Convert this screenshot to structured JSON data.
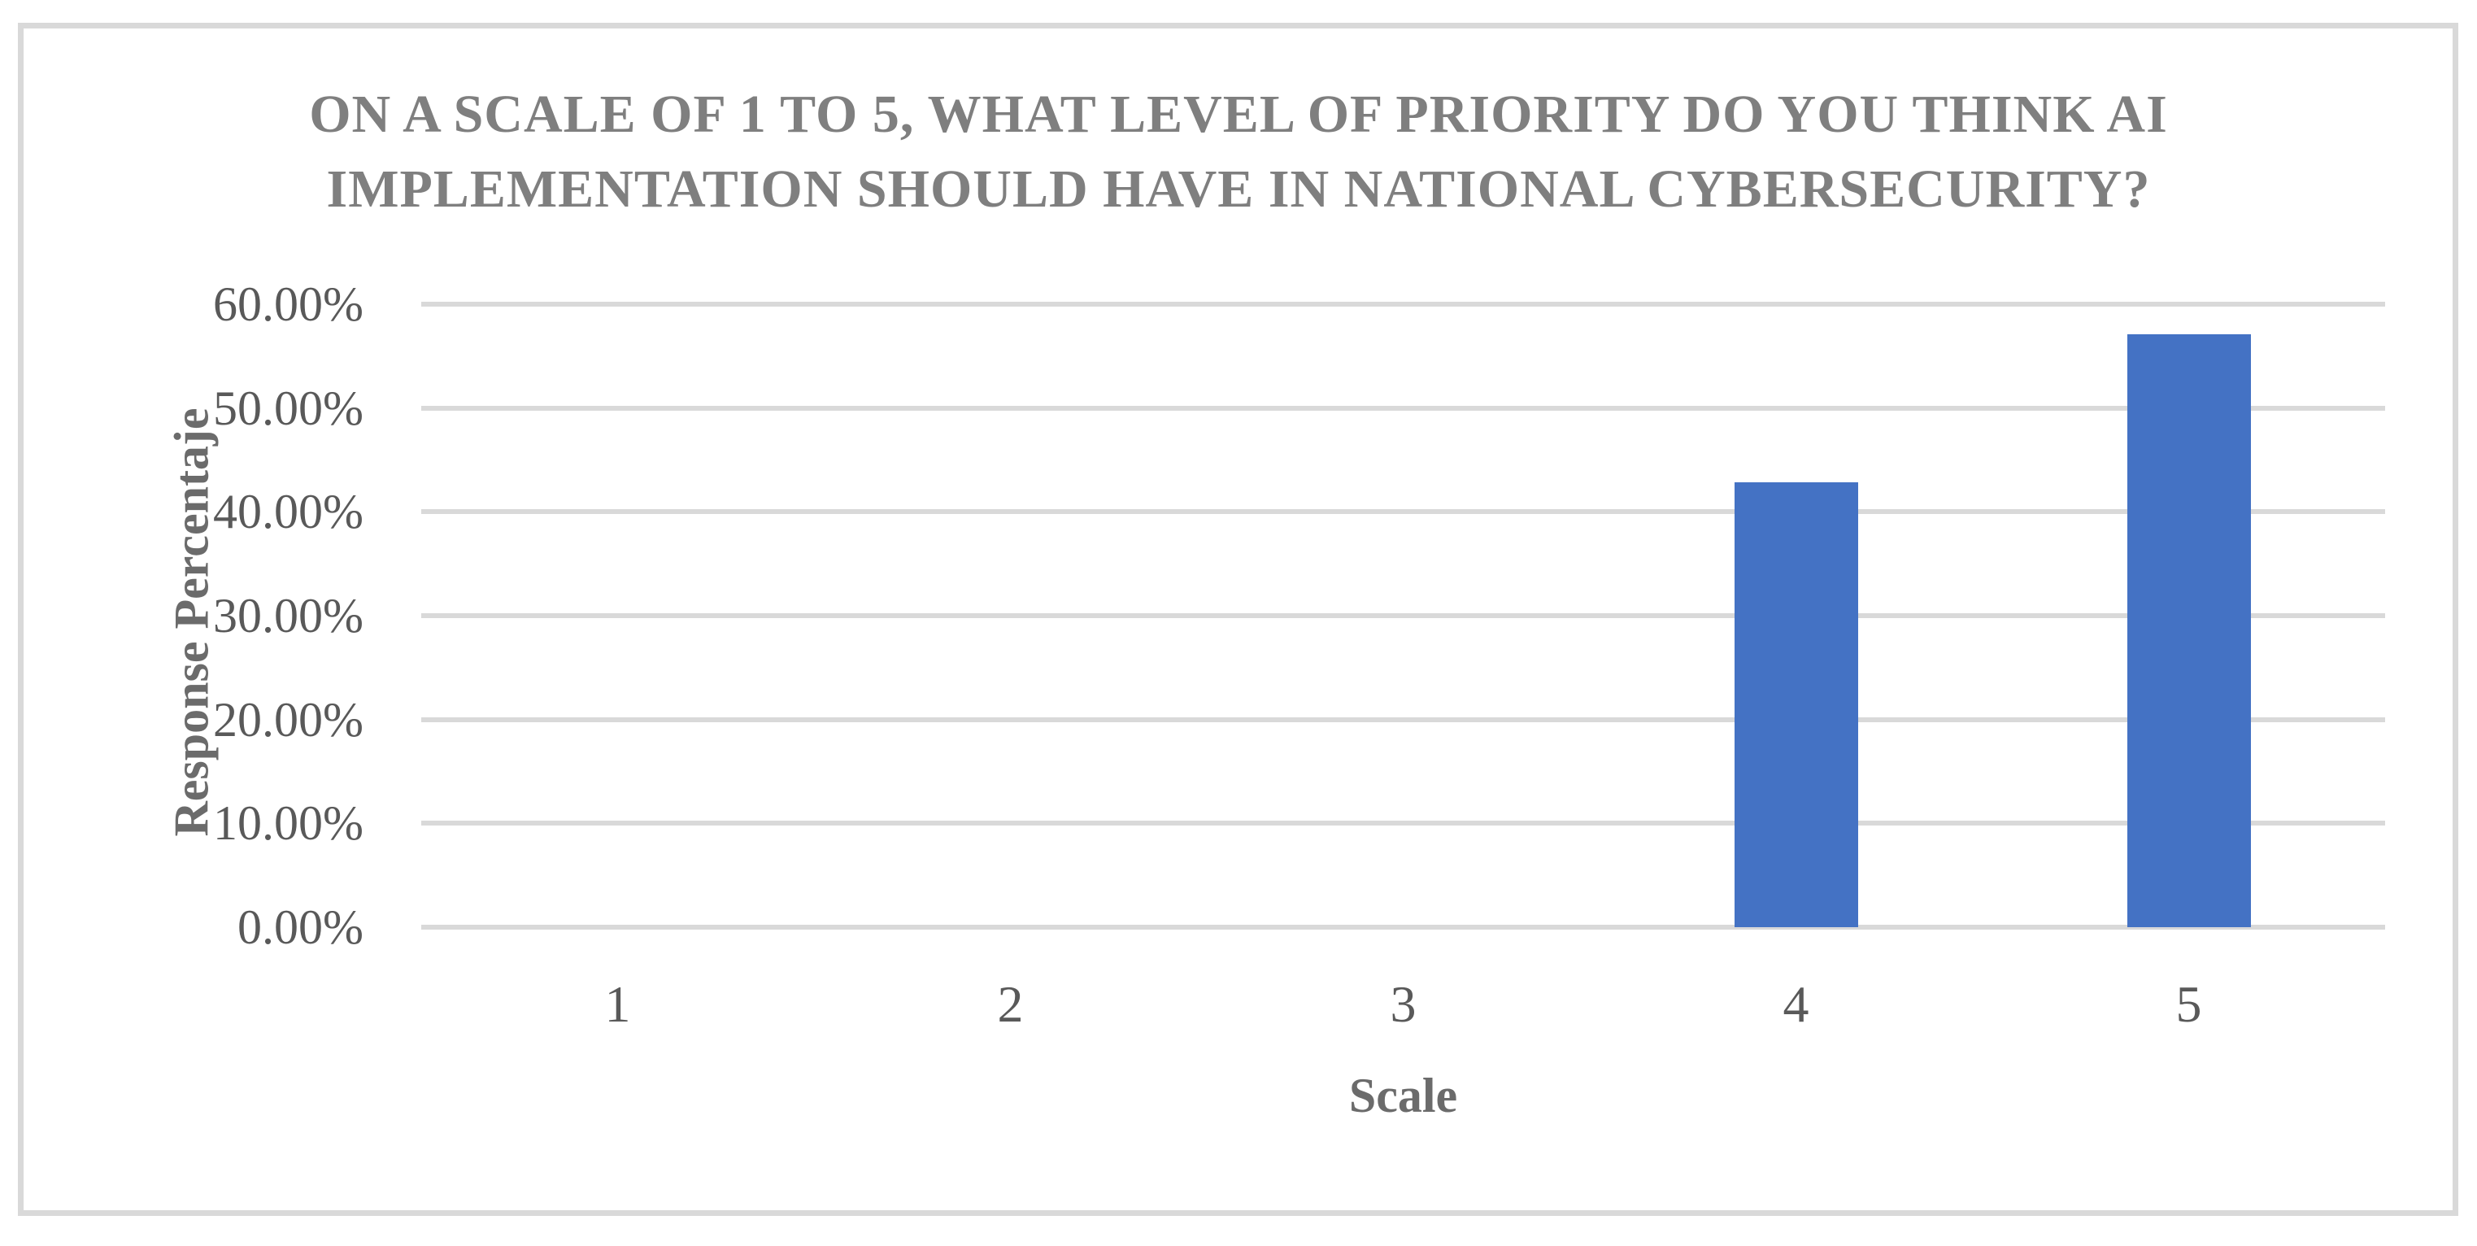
{
  "figure": {
    "background_color": "#FFFFFF",
    "border_color": "#D9D9D9"
  },
  "chart_data": {
    "type": "bar",
    "title": "ON A SCALE OF 1 TO 5, WHAT LEVEL OF PRIORITY DO YOU THINK AI IMPLEMENTATION SHOULD HAVE IN NATIONAL CYBERSECURITY?",
    "title_lines": [
      "ON A SCALE OF 1 TO 5, WHAT LEVEL OF PRIORITY DO YOU THINK AI",
      "IMPLEMENTATION SHOULD HAVE IN NATIONAL CYBERSECURITY?"
    ],
    "categories": [
      "1",
      "2",
      "3",
      "4",
      "5"
    ],
    "values": [
      0,
      0,
      0,
      42.86,
      57.14
    ],
    "xlabel": "Scale",
    "ylabel": "Response Percentaje",
    "ylim": [
      0,
      60
    ],
    "ytick_step": 10,
    "ytick_labels": [
      "0.00%",
      "10.00%",
      "20.00%",
      "30.00%",
      "40.00%",
      "50.00%",
      "60.00%"
    ],
    "grid": true,
    "legend": "none",
    "bar_color": "#4472C4",
    "gridline_color": "#D9D9D9",
    "title_color": "#7F7F7F",
    "axis_text_color": "#595959"
  }
}
